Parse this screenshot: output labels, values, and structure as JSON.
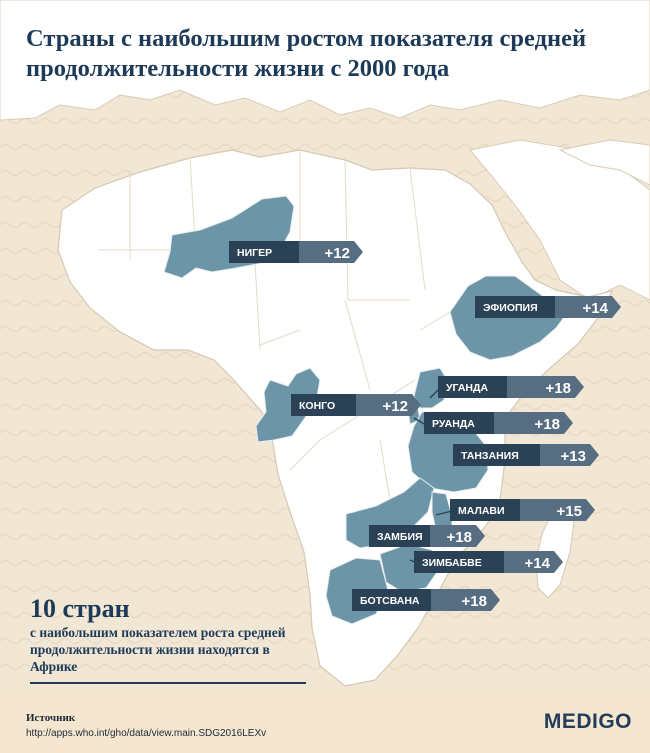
{
  "title": "Страны с наибольшим ростом показателя средней продолжительности жизни с 2000 года",
  "summary": {
    "big": "10 стран",
    "text": "с наибольшим показателем роста средней продолжительности жизни находятся в Африке"
  },
  "footer": {
    "source_label": "Источник",
    "source_url": "http://apps.who.int/gho/data/view.main.SDG2016LEXv",
    "brand": "MEDIGO"
  },
  "colors": {
    "background": "#f2e6d4",
    "land": "#ffffff",
    "highlight": "#6c96a8",
    "label_dark": "#2b4256",
    "label_light": "#566d82",
    "title": "#1d3b58"
  },
  "countries": [
    {
      "id": "niger",
      "name": "НИГЕР",
      "value": "+12"
    },
    {
      "id": "ethiopia",
      "name": "ЭФИОПИЯ",
      "value": "+14"
    },
    {
      "id": "uganda",
      "name": "УГАНДА",
      "value": "+18"
    },
    {
      "id": "congo",
      "name": "КОНГО",
      "value": "+12"
    },
    {
      "id": "rwanda",
      "name": "РУАНДА",
      "value": "+18"
    },
    {
      "id": "tanzania",
      "name": "ТАНЗАНИЯ",
      "value": "+13"
    },
    {
      "id": "malawi",
      "name": "МАЛАВИ",
      "value": "+15"
    },
    {
      "id": "zambia",
      "name": "ЗАМБИЯ",
      "value": "+18"
    },
    {
      "id": "zimbabwe",
      "name": "ЗИМБАБВЕ",
      "value": "+14"
    },
    {
      "id": "botswana",
      "name": "БОТСВАНА",
      "value": "+18"
    }
  ]
}
